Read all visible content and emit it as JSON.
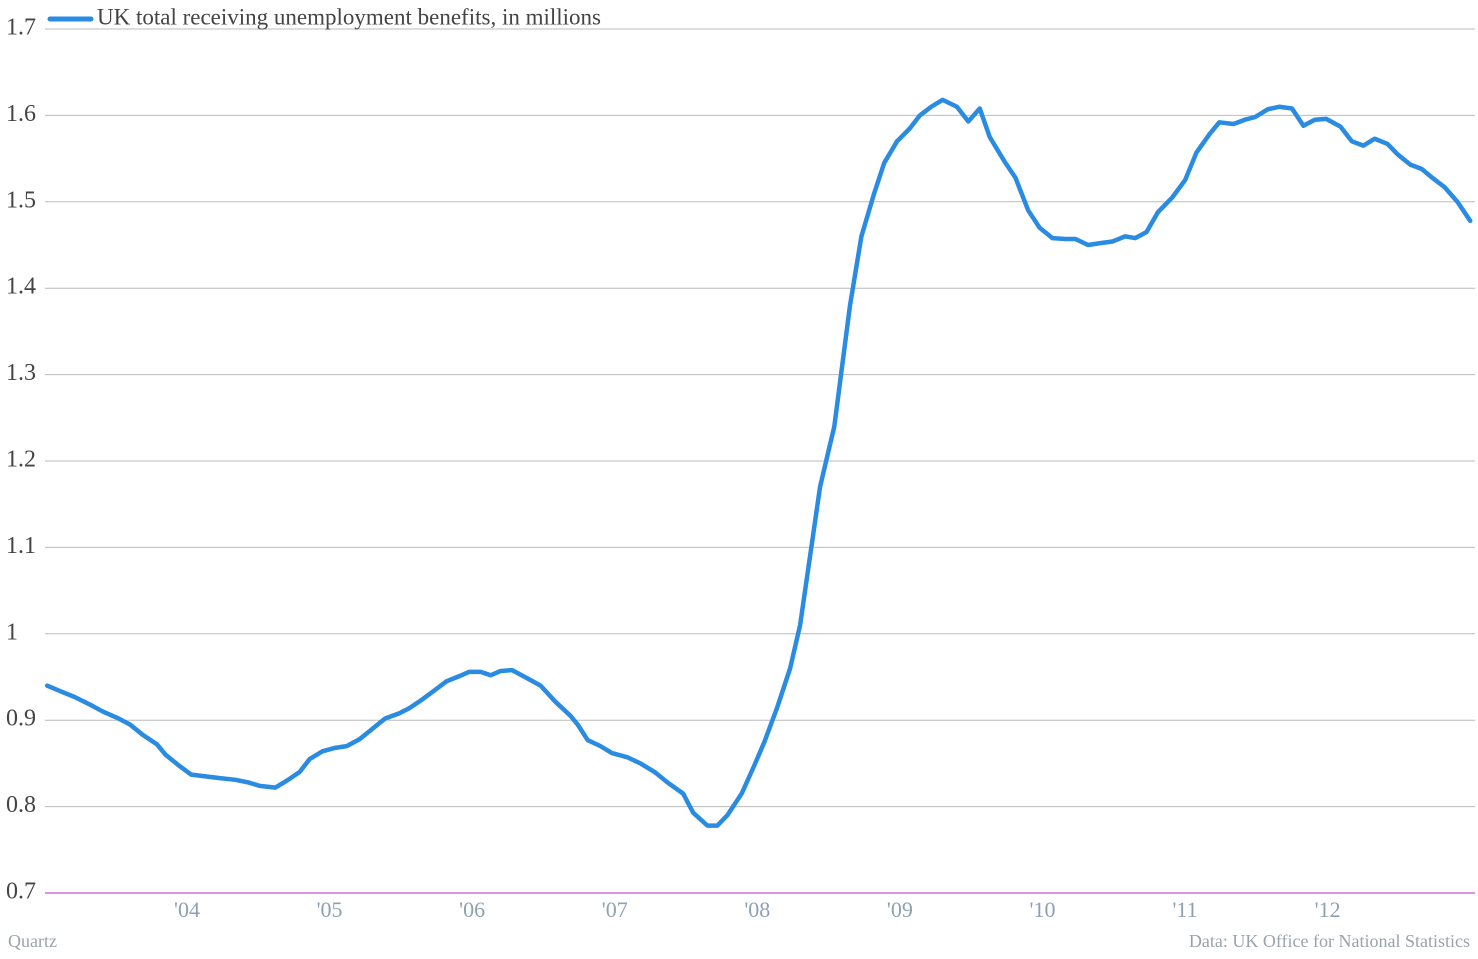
{
  "chart_data": {
    "type": "line",
    "credit": "Quartz",
    "source": "Data: UK Office for National Statistics",
    "x": [
      2003.02,
      2003.12,
      2003.21,
      2003.32,
      2003.41,
      2003.52,
      2003.6,
      2003.69,
      2003.79,
      2003.85,
      2003.94,
      2004.03,
      2004.13,
      2004.23,
      2004.34,
      2004.43,
      2004.51,
      2004.62,
      2004.7,
      2004.79,
      2004.86,
      2004.95,
      2005.04,
      2005.12,
      2005.21,
      2005.3,
      2005.39,
      2005.49,
      2005.56,
      2005.65,
      2005.74,
      2005.82,
      2005.91,
      2005.98,
      2006.06,
      2006.13,
      2006.2,
      2006.28,
      2006.37,
      2006.48,
      2006.58,
      2006.69,
      2006.74,
      2006.81,
      2006.9,
      2006.98,
      2007.09,
      2007.18,
      2007.28,
      2007.37,
      2007.48,
      2007.55,
      2007.65,
      2007.72,
      2007.79,
      2007.89,
      2007.98,
      2008.05,
      2008.14,
      2008.23,
      2008.3,
      2008.37,
      2008.44,
      2008.54,
      2008.65,
      2008.73,
      2008.82,
      2008.89,
      2008.98,
      2009.07,
      2009.14,
      2009.22,
      2009.3,
      2009.4,
      2009.48,
      2009.56,
      2009.63,
      2009.74,
      2009.81,
      2009.9,
      2009.98,
      2010.07,
      2010.16,
      2010.23,
      2010.32,
      2010.4,
      2010.49,
      2010.58,
      2010.65,
      2010.73,
      2010.81,
      2010.91,
      2011.0,
      2011.08,
      2011.17,
      2011.24,
      2011.34,
      2011.42,
      2011.49,
      2011.58,
      2011.66,
      2011.75,
      2011.83,
      2011.91,
      2011.99,
      2012.09,
      2012.17,
      2012.25,
      2012.33,
      2012.42,
      2012.49,
      2012.58,
      2012.66,
      2012.74,
      2012.82,
      2012.91,
      2013.0
    ],
    "series": [
      {
        "name": "UK total receiving unemployment benefits, in millions",
        "color": "#2a8be3",
        "values": [
          0.94,
          0.933,
          0.927,
          0.918,
          0.91,
          0.902,
          0.895,
          0.883,
          0.872,
          0.86,
          0.848,
          0.837,
          0.835,
          0.833,
          0.831,
          0.828,
          0.824,
          0.822,
          0.83,
          0.84,
          0.855,
          0.864,
          0.868,
          0.87,
          0.878,
          0.89,
          0.902,
          0.908,
          0.914,
          0.924,
          0.935,
          0.945,
          0.951,
          0.956,
          0.956,
          0.952,
          0.957,
          0.958,
          0.95,
          0.94,
          0.922,
          0.905,
          0.895,
          0.877,
          0.87,
          0.862,
          0.857,
          0.85,
          0.84,
          0.828,
          0.815,
          0.793,
          0.778,
          0.778,
          0.79,
          0.815,
          0.848,
          0.875,
          0.915,
          0.96,
          1.01,
          1.09,
          1.17,
          1.24,
          1.38,
          1.46,
          1.51,
          1.545,
          1.57,
          1.585,
          1.6,
          1.61,
          1.618,
          1.61,
          1.593,
          1.608,
          1.575,
          1.545,
          1.528,
          1.49,
          1.47,
          1.458,
          1.457,
          1.457,
          1.45,
          1.452,
          1.454,
          1.46,
          1.458,
          1.465,
          1.488,
          1.505,
          1.525,
          1.557,
          1.578,
          1.592,
          1.59,
          1.595,
          1.598,
          1.607,
          1.61,
          1.608,
          1.588,
          1.595,
          1.596,
          1.587,
          1.57,
          1.565,
          1.573,
          1.567,
          1.555,
          1.543,
          1.538,
          1.527,
          1.517,
          1.5,
          1.478
        ]
      }
    ],
    "xlim": [
      2003,
      2013.03
    ],
    "xticks": [
      {
        "value": 2004,
        "label": "'04"
      },
      {
        "value": 2005,
        "label": "'05"
      },
      {
        "value": 2006,
        "label": "'06"
      },
      {
        "value": 2007,
        "label": "'07"
      },
      {
        "value": 2008,
        "label": "'08"
      },
      {
        "value": 2009,
        "label": "'09"
      },
      {
        "value": 2010,
        "label": "'10"
      },
      {
        "value": 2011,
        "label": "'11"
      },
      {
        "value": 2012,
        "label": "'12"
      }
    ],
    "ylim": [
      0.7,
      1.7
    ],
    "yticks": [
      0.7,
      0.8,
      0.9,
      1,
      1.1,
      1.2,
      1.3,
      1.4,
      1.5,
      1.6,
      1.7
    ],
    "grid": true
  }
}
